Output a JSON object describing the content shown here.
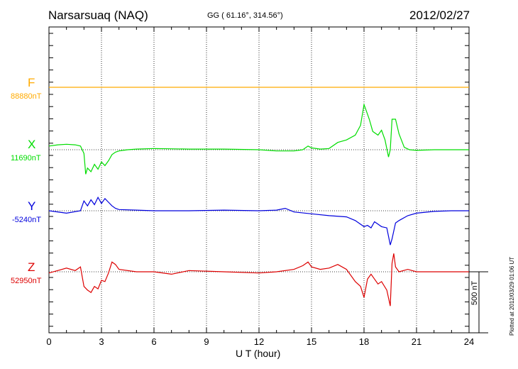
{
  "header": {
    "station": "Narsarsuaq (NAQ)",
    "coords": "GG ( 61.16°, 314.56°)",
    "date": "2012/02/27"
  },
  "components": [
    {
      "key": "F",
      "label": "F",
      "baseline": "88880nT",
      "color": "#ffaa00"
    },
    {
      "key": "X",
      "label": "X",
      "baseline": "11690nT",
      "color": "#00dd00"
    },
    {
      "key": "Y",
      "label": "Y",
      "baseline": "-5240nT",
      "color": "#0000dd"
    },
    {
      "key": "Z",
      "label": "Z",
      "baseline": "52950nT",
      "color": "#dd0000"
    }
  ],
  "scale_bar": {
    "label": "500 nT",
    "value": 500
  },
  "plotted_note": "Plotted at 2012/03/29 01:06 UT",
  "chart_data": {
    "type": "line",
    "title": "Narsarsuaq (NAQ)",
    "xlabel": "U T (hour)",
    "ylabel": "",
    "xlim": [
      0,
      24
    ],
    "xticks": [
      0,
      3,
      6,
      9,
      12,
      15,
      18,
      21,
      24
    ],
    "grid": true,
    "series": [
      {
        "name": "F",
        "unit": "nT",
        "baseline": 88880,
        "x": [
          0,
          24
        ],
        "y": [
          0,
          0
        ]
      },
      {
        "name": "X",
        "unit": "nT",
        "baseline": 11690,
        "x": [
          0,
          0.5,
          1.0,
          1.5,
          1.8,
          2.0,
          2.1,
          2.2,
          2.4,
          2.6,
          2.8,
          3.0,
          3.2,
          3.4,
          3.6,
          3.8,
          4.0,
          4.5,
          5,
          6,
          8,
          10,
          12,
          13,
          14,
          14.5,
          14.8,
          15,
          15.5,
          16,
          16.5,
          17,
          17.5,
          17.8,
          18.0,
          18.1,
          18.3,
          18.5,
          18.8,
          19.0,
          19.2,
          19.4,
          19.5,
          19.6,
          19.8,
          20.0,
          20.3,
          20.6,
          21,
          22,
          23,
          24
        ],
        "y": [
          30,
          40,
          45,
          40,
          30,
          -30,
          -200,
          -150,
          -180,
          -120,
          -160,
          -100,
          -130,
          -90,
          -40,
          -20,
          -10,
          0,
          5,
          10,
          5,
          5,
          0,
          -10,
          -10,
          0,
          30,
          15,
          5,
          10,
          60,
          80,
          120,
          200,
          370,
          330,
          250,
          150,
          120,
          160,
          80,
          -60,
          0,
          250,
          250,
          130,
          20,
          0,
          -5,
          0,
          0,
          0
        ]
      },
      {
        "name": "Y",
        "unit": "nT",
        "baseline": -5240,
        "x": [
          0,
          1.0,
          1.8,
          2.0,
          2.2,
          2.4,
          2.6,
          2.8,
          3.0,
          3.2,
          3.4,
          3.6,
          3.8,
          4.0,
          5,
          6,
          8,
          10,
          12,
          13,
          13.5,
          14,
          15,
          16,
          17,
          17.5,
          18.0,
          18.2,
          18.4,
          18.6,
          18.8,
          19.0,
          19.3,
          19.5,
          19.6,
          19.8,
          20.0,
          20.5,
          21,
          22,
          23,
          24
        ],
        "y": [
          0,
          -20,
          0,
          80,
          40,
          90,
          50,
          110,
          60,
          100,
          70,
          40,
          20,
          10,
          5,
          0,
          0,
          5,
          0,
          5,
          20,
          -10,
          -25,
          -40,
          -50,
          -80,
          -130,
          -120,
          -140,
          -90,
          -110,
          -130,
          -140,
          -280,
          -230,
          -100,
          -80,
          -40,
          -20,
          -5,
          0,
          0
        ]
      },
      {
        "name": "Z",
        "unit": "nT",
        "baseline": 52950,
        "x": [
          0,
          0.5,
          1.0,
          1.5,
          1.8,
          2.0,
          2.2,
          2.4,
          2.6,
          2.8,
          3.0,
          3.2,
          3.4,
          3.6,
          3.8,
          4.0,
          5,
          6,
          7,
          8,
          10,
          12,
          13,
          14,
          14.5,
          14.8,
          15,
          15.5,
          16,
          16.5,
          17,
          17.5,
          17.8,
          18.0,
          18.2,
          18.4,
          18.6,
          18.8,
          19.0,
          19.3,
          19.5,
          19.6,
          19.7,
          19.8,
          20.0,
          20.5,
          21,
          22,
          23,
          24
        ],
        "y": [
          -10,
          10,
          30,
          10,
          40,
          -120,
          -150,
          -170,
          -120,
          -140,
          -70,
          -80,
          -10,
          80,
          60,
          20,
          0,
          0,
          -20,
          10,
          0,
          -10,
          0,
          20,
          50,
          80,
          40,
          20,
          30,
          60,
          20,
          -80,
          -120,
          -210,
          -60,
          -20,
          -60,
          -100,
          -80,
          -150,
          -280,
          70,
          150,
          40,
          0,
          20,
          0,
          0,
          0,
          0
        ]
      }
    ]
  }
}
